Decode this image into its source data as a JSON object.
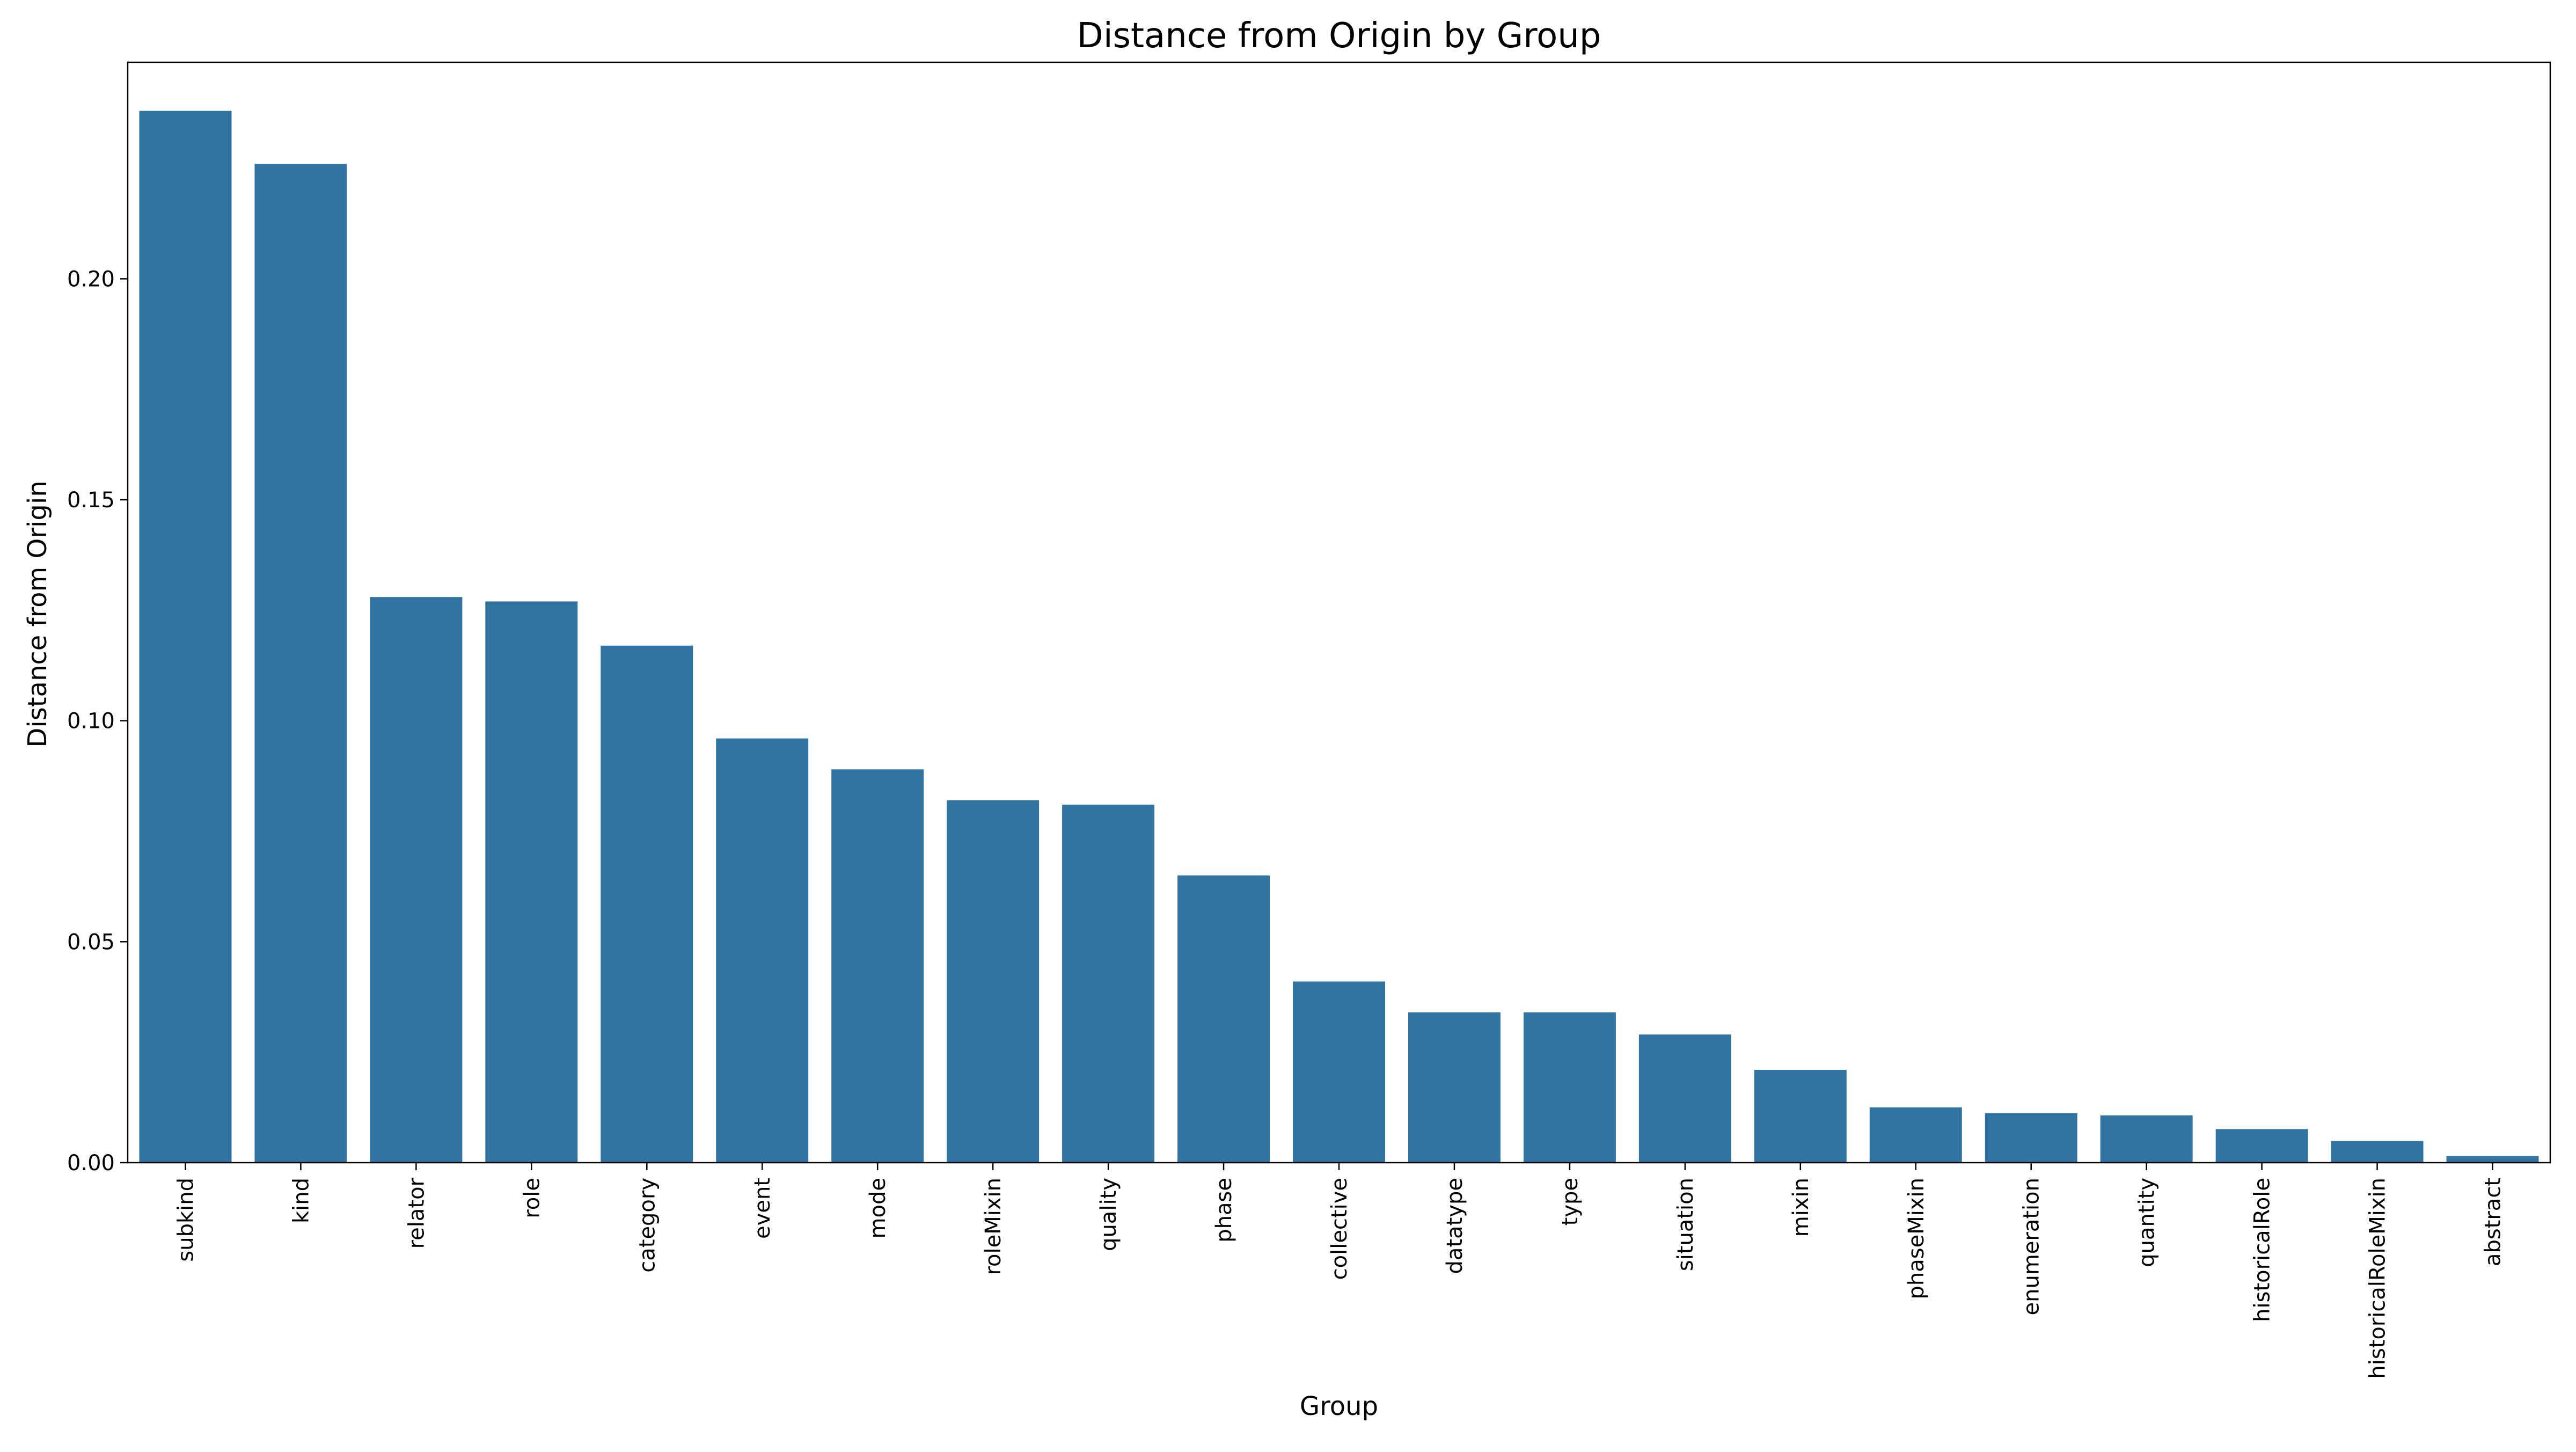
{
  "chart_data": {
    "type": "bar",
    "title": "Distance from Origin by Group",
    "xlabel": "Group",
    "ylabel": "Distance from Origin",
    "ylim": [
      0,
      0.249
    ],
    "yticks": [
      "0.00",
      "0.05",
      "0.10",
      "0.15",
      "0.20"
    ],
    "ytick_values": [
      0.0,
      0.05,
      0.1,
      0.15,
      0.2
    ],
    "grid": false,
    "legend": "none",
    "bar_color": "#3274a1",
    "categories": [
      "subkind",
      "kind",
      "relator",
      "role",
      "category",
      "event",
      "mode",
      "roleMixin",
      "quality",
      "phase",
      "collective",
      "datatype",
      "type",
      "situation",
      "mixin",
      "phaseMixin",
      "enumeration",
      "quantity",
      "historicalRole",
      "historicalRoleMixin",
      "abstract"
    ],
    "values": [
      0.238,
      0.226,
      0.128,
      0.127,
      0.117,
      0.096,
      0.089,
      0.082,
      0.081,
      0.065,
      0.041,
      0.034,
      0.034,
      0.029,
      0.021,
      0.0125,
      0.0112,
      0.0107,
      0.0076,
      0.0049,
      0.0015
    ]
  }
}
